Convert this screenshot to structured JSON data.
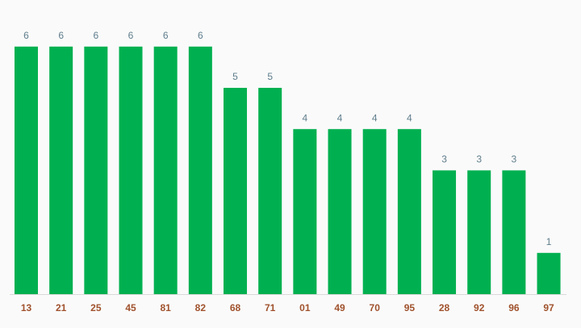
{
  "chart_data": {
    "type": "bar",
    "categories": [
      "13",
      "21",
      "25",
      "45",
      "81",
      "82",
      "68",
      "71",
      "01",
      "49",
      "70",
      "95",
      "28",
      "92",
      "96",
      "97"
    ],
    "values": [
      6,
      6,
      6,
      6,
      6,
      6,
      5,
      5,
      4,
      4,
      4,
      4,
      3,
      3,
      3,
      1
    ],
    "color": "#00b050"
  }
}
